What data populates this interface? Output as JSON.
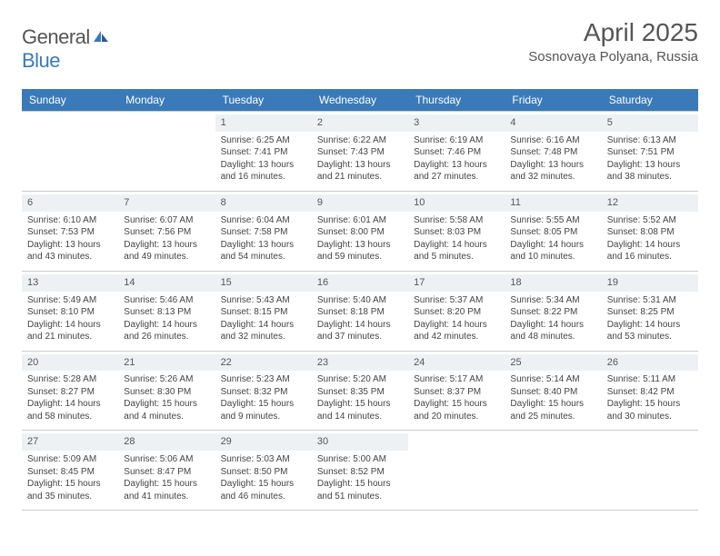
{
  "logo": {
    "text_a": "General",
    "text_b": "Blue"
  },
  "header": {
    "title": "April 2025",
    "location": "Sosnovaya Polyana, Russia"
  },
  "colors": {
    "header_bg": "#3a7ab8",
    "header_fg": "#ffffff",
    "daynum_bg": "#eef1f4",
    "border": "#cccccc",
    "text": "#444444"
  },
  "day_names": [
    "Sunday",
    "Monday",
    "Tuesday",
    "Wednesday",
    "Thursday",
    "Friday",
    "Saturday"
  ],
  "weeks": [
    [
      null,
      null,
      {
        "n": "1",
        "sr": "Sunrise: 6:25 AM",
        "ss": "Sunset: 7:41 PM",
        "dl": "Daylight: 13 hours and 16 minutes."
      },
      {
        "n": "2",
        "sr": "Sunrise: 6:22 AM",
        "ss": "Sunset: 7:43 PM",
        "dl": "Daylight: 13 hours and 21 minutes."
      },
      {
        "n": "3",
        "sr": "Sunrise: 6:19 AM",
        "ss": "Sunset: 7:46 PM",
        "dl": "Daylight: 13 hours and 27 minutes."
      },
      {
        "n": "4",
        "sr": "Sunrise: 6:16 AM",
        "ss": "Sunset: 7:48 PM",
        "dl": "Daylight: 13 hours and 32 minutes."
      },
      {
        "n": "5",
        "sr": "Sunrise: 6:13 AM",
        "ss": "Sunset: 7:51 PM",
        "dl": "Daylight: 13 hours and 38 minutes."
      }
    ],
    [
      {
        "n": "6",
        "sr": "Sunrise: 6:10 AM",
        "ss": "Sunset: 7:53 PM",
        "dl": "Daylight: 13 hours and 43 minutes."
      },
      {
        "n": "7",
        "sr": "Sunrise: 6:07 AM",
        "ss": "Sunset: 7:56 PM",
        "dl": "Daylight: 13 hours and 49 minutes."
      },
      {
        "n": "8",
        "sr": "Sunrise: 6:04 AM",
        "ss": "Sunset: 7:58 PM",
        "dl": "Daylight: 13 hours and 54 minutes."
      },
      {
        "n": "9",
        "sr": "Sunrise: 6:01 AM",
        "ss": "Sunset: 8:00 PM",
        "dl": "Daylight: 13 hours and 59 minutes."
      },
      {
        "n": "10",
        "sr": "Sunrise: 5:58 AM",
        "ss": "Sunset: 8:03 PM",
        "dl": "Daylight: 14 hours and 5 minutes."
      },
      {
        "n": "11",
        "sr": "Sunrise: 5:55 AM",
        "ss": "Sunset: 8:05 PM",
        "dl": "Daylight: 14 hours and 10 minutes."
      },
      {
        "n": "12",
        "sr": "Sunrise: 5:52 AM",
        "ss": "Sunset: 8:08 PM",
        "dl": "Daylight: 14 hours and 16 minutes."
      }
    ],
    [
      {
        "n": "13",
        "sr": "Sunrise: 5:49 AM",
        "ss": "Sunset: 8:10 PM",
        "dl": "Daylight: 14 hours and 21 minutes."
      },
      {
        "n": "14",
        "sr": "Sunrise: 5:46 AM",
        "ss": "Sunset: 8:13 PM",
        "dl": "Daylight: 14 hours and 26 minutes."
      },
      {
        "n": "15",
        "sr": "Sunrise: 5:43 AM",
        "ss": "Sunset: 8:15 PM",
        "dl": "Daylight: 14 hours and 32 minutes."
      },
      {
        "n": "16",
        "sr": "Sunrise: 5:40 AM",
        "ss": "Sunset: 8:18 PM",
        "dl": "Daylight: 14 hours and 37 minutes."
      },
      {
        "n": "17",
        "sr": "Sunrise: 5:37 AM",
        "ss": "Sunset: 8:20 PM",
        "dl": "Daylight: 14 hours and 42 minutes."
      },
      {
        "n": "18",
        "sr": "Sunrise: 5:34 AM",
        "ss": "Sunset: 8:22 PM",
        "dl": "Daylight: 14 hours and 48 minutes."
      },
      {
        "n": "19",
        "sr": "Sunrise: 5:31 AM",
        "ss": "Sunset: 8:25 PM",
        "dl": "Daylight: 14 hours and 53 minutes."
      }
    ],
    [
      {
        "n": "20",
        "sr": "Sunrise: 5:28 AM",
        "ss": "Sunset: 8:27 PM",
        "dl": "Daylight: 14 hours and 58 minutes."
      },
      {
        "n": "21",
        "sr": "Sunrise: 5:26 AM",
        "ss": "Sunset: 8:30 PM",
        "dl": "Daylight: 15 hours and 4 minutes."
      },
      {
        "n": "22",
        "sr": "Sunrise: 5:23 AM",
        "ss": "Sunset: 8:32 PM",
        "dl": "Daylight: 15 hours and 9 minutes."
      },
      {
        "n": "23",
        "sr": "Sunrise: 5:20 AM",
        "ss": "Sunset: 8:35 PM",
        "dl": "Daylight: 15 hours and 14 minutes."
      },
      {
        "n": "24",
        "sr": "Sunrise: 5:17 AM",
        "ss": "Sunset: 8:37 PM",
        "dl": "Daylight: 15 hours and 20 minutes."
      },
      {
        "n": "25",
        "sr": "Sunrise: 5:14 AM",
        "ss": "Sunset: 8:40 PM",
        "dl": "Daylight: 15 hours and 25 minutes."
      },
      {
        "n": "26",
        "sr": "Sunrise: 5:11 AM",
        "ss": "Sunset: 8:42 PM",
        "dl": "Daylight: 15 hours and 30 minutes."
      }
    ],
    [
      {
        "n": "27",
        "sr": "Sunrise: 5:09 AM",
        "ss": "Sunset: 8:45 PM",
        "dl": "Daylight: 15 hours and 35 minutes."
      },
      {
        "n": "28",
        "sr": "Sunrise: 5:06 AM",
        "ss": "Sunset: 8:47 PM",
        "dl": "Daylight: 15 hours and 41 minutes."
      },
      {
        "n": "29",
        "sr": "Sunrise: 5:03 AM",
        "ss": "Sunset: 8:50 PM",
        "dl": "Daylight: 15 hours and 46 minutes."
      },
      {
        "n": "30",
        "sr": "Sunrise: 5:00 AM",
        "ss": "Sunset: 8:52 PM",
        "dl": "Daylight: 15 hours and 51 minutes."
      },
      null,
      null,
      null
    ]
  ]
}
